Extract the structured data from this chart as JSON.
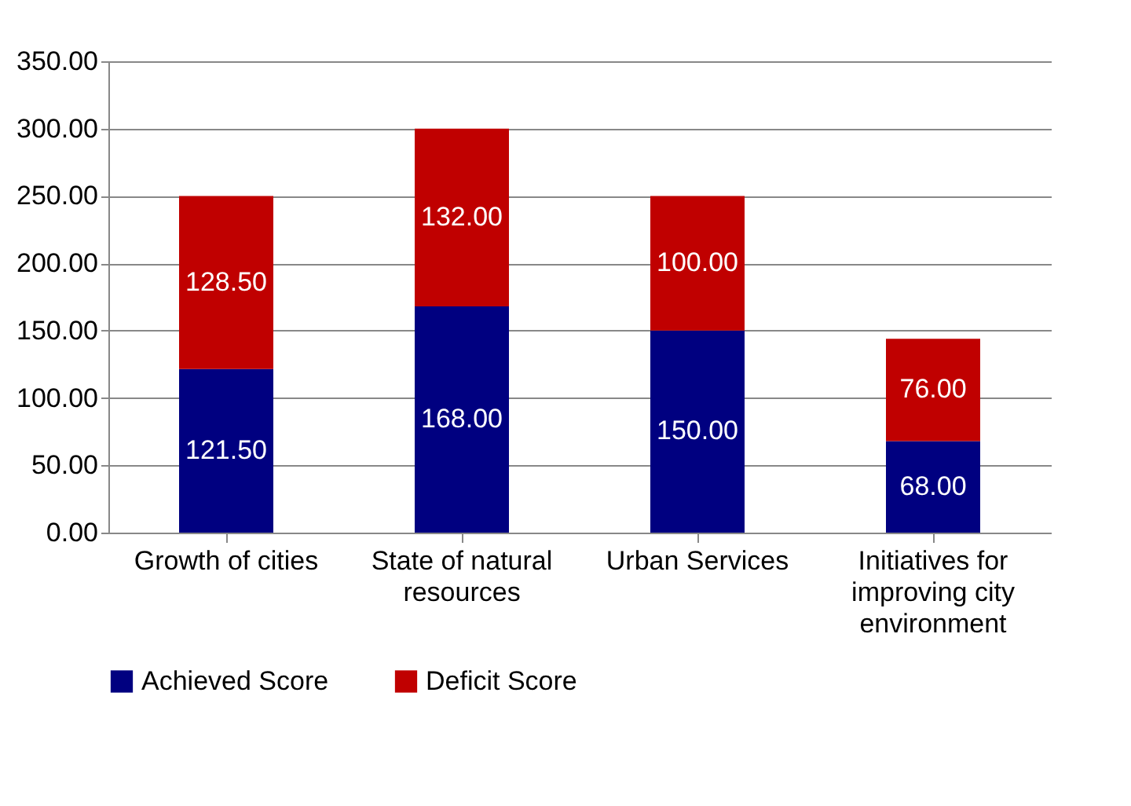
{
  "chart_data": {
    "type": "bar",
    "stacked": true,
    "categories": [
      "Growth of cities",
      "State of natural resources",
      "Urban Services",
      "Initiatives for improving city environment"
    ],
    "series": [
      {
        "name": "Achieved Score",
        "color": "#000080",
        "values": [
          121.5,
          168,
          150,
          68
        ],
        "value_labels": [
          "121.50",
          "168.00",
          "150.00",
          "68.00"
        ]
      },
      {
        "name": "Deficit Score",
        "color": "#c00000",
        "values": [
          128.5,
          132,
          100,
          76
        ],
        "value_labels": [
          "128.50",
          "132.00",
          "100.00",
          "76.00"
        ]
      }
    ],
    "ylim": [
      0,
      350
    ],
    "yticks": [
      {
        "value": 0,
        "label": "0.00"
      },
      {
        "value": 50,
        "label": "50.00"
      },
      {
        "value": 100,
        "label": "100.00"
      },
      {
        "value": 150,
        "label": "150.00"
      },
      {
        "value": 200,
        "label": "200.00"
      },
      {
        "value": 250,
        "label": "250.00"
      },
      {
        "value": 300,
        "label": "300.00"
      },
      {
        "value": 350,
        "label": "350.00"
      }
    ],
    "grid": "y",
    "legend": "bottom"
  }
}
